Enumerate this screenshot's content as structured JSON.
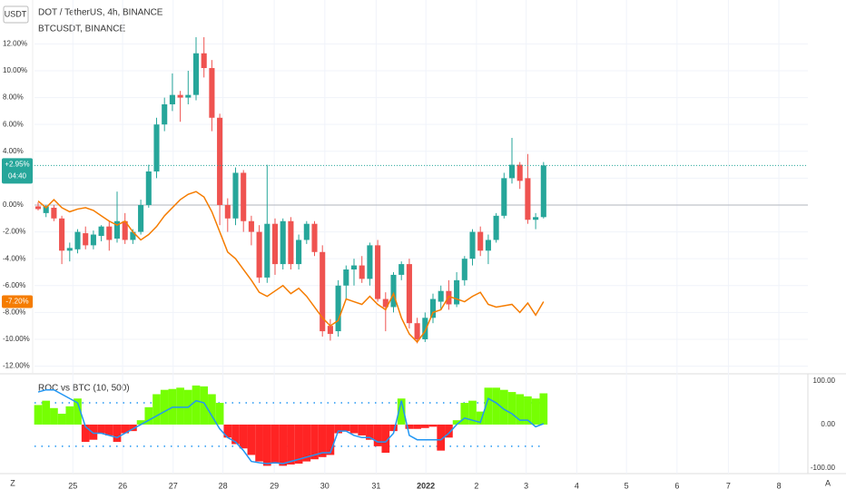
{
  "ui": {
    "currency": "USDT",
    "zoom": "Z",
    "auto": "A"
  },
  "chart_data": [
    {
      "type": "candlestick",
      "title": "DOT / TetherUS, 4h, BINANCE",
      "subtitle": "BTCUSDT, BINANCE",
      "up_color": "#26a69a",
      "down_color": "#ef5350",
      "open": [
        -0.1,
        -0.6,
        -0.2,
        -1.0,
        -3.4,
        -3.3,
        -2.1,
        -3.0,
        -2.3,
        -1.6,
        -2.5,
        -1.2,
        -2.6,
        -2.0,
        0.0,
        2.5,
        6.0,
        7.5,
        8.2,
        8.0,
        8.2,
        11.3,
        10.2,
        6.5,
        0.0,
        -1.0,
        2.4,
        -1.2,
        -2.0,
        -5.4,
        -1.4,
        -4.4,
        -1.2,
        -4.4,
        -2.6,
        -1.4,
        -3.5,
        -9.0,
        -9.4,
        -6.0,
        -4.8,
        -4.5,
        -5.5,
        -3.0,
        -7.0,
        -7.6,
        -5.2,
        -4.4,
        -8.8,
        -10.0,
        -8.4,
        -7.2,
        -6.4,
        -7.4,
        -5.6,
        -4.0,
        -2.0,
        -3.4,
        -2.6,
        -0.8,
        2.0,
        3.0,
        2.0,
        -1.1,
        -0.9
      ],
      "high": [
        0.2,
        0,
        0,
        -0.8,
        -2.8,
        -1.8,
        -1.6,
        -1.9,
        -1.5,
        -1.2,
        1.0,
        -0.6,
        -1.8,
        0.4,
        3.0,
        6.5,
        8.0,
        9.8,
        8.5,
        10.0,
        12.5,
        12.5,
        10.8,
        6.8,
        0.5,
        2.8,
        2.6,
        -0.8,
        -1.5,
        3.0,
        -1.0,
        -1.0,
        -0.9,
        -2.2,
        -1.2,
        -1.2,
        -3.0,
        -8.5,
        -5.6,
        -4.5,
        -4.0,
        -3.8,
        -2.8,
        -2.6,
        -6.5,
        -5.0,
        -4.2,
        -4.0,
        -8.4,
        -8.0,
        -6.6,
        -6.0,
        -5.6,
        -5.0,
        -3.8,
        -1.8,
        -1.6,
        -2.2,
        -0.6,
        2.4,
        5.0,
        3.2,
        3.8,
        -0.6,
        3.2
      ],
      "low": [
        -0.4,
        -0.9,
        -1.2,
        -4.4,
        -4.2,
        -3.6,
        -3.3,
        -3.3,
        -2.7,
        -3.4,
        -2.8,
        -2.9,
        -2.9,
        -2.2,
        -0.2,
        2.0,
        5.5,
        7.0,
        6.2,
        7.5,
        7.8,
        9.5,
        5.5,
        -1.5,
        -2.0,
        -1.5,
        -2.0,
        -3.0,
        -5.8,
        -5.8,
        -5.2,
        -4.8,
        -4.8,
        -4.8,
        -2.9,
        -3.8,
        -9.8,
        -10.1,
        -9.8,
        -7.0,
        -6.0,
        -5.8,
        -6.0,
        -7.2,
        -9.4,
        -8.0,
        -5.6,
        -9.2,
        -10.3,
        -10.2,
        -8.8,
        -7.8,
        -7.8,
        -7.6,
        -6.0,
        -4.5,
        -3.8,
        -4.4,
        -2.8,
        -1.0,
        1.6,
        1.2,
        -1.4,
        -1.8,
        -1.0
      ],
      "close": [
        -0.3,
        -0.1,
        -1.0,
        -3.4,
        -3.2,
        -2.0,
        -3.0,
        -2.2,
        -1.6,
        -2.6,
        -1.2,
        -2.6,
        -2.0,
        0.0,
        2.5,
        6.0,
        7.5,
        8.2,
        8.0,
        8.2,
        11.3,
        10.2,
        6.5,
        0.0,
        -1.0,
        2.4,
        -1.2,
        -2.0,
        -5.4,
        -1.4,
        -4.4,
        -1.2,
        -4.4,
        -2.6,
        -1.4,
        -3.5,
        -9.4,
        -9.6,
        -6.0,
        -4.8,
        -4.5,
        -5.5,
        -3.0,
        -7.0,
        -7.6,
        -5.2,
        -4.4,
        -8.8,
        -10.0,
        -8.4,
        -7.0,
        -6.4,
        -7.4,
        -5.6,
        -4.0,
        -2.0,
        -3.4,
        -2.6,
        -0.8,
        2.0,
        3.0,
        1.8,
        -1.1,
        -0.9,
        2.95
      ],
      "series": [
        {
          "name": "BTCUSDT, BINANCE",
          "color": "#f57c00",
          "values": [
            0.3,
            -0.2,
            0.4,
            -0.2,
            -0.5,
            -0.3,
            -0.2,
            -0.4,
            -0.8,
            -1.2,
            -1.5,
            -1.2,
            -2.0,
            -2.6,
            -2.2,
            -1.6,
            -0.8,
            -0.2,
            0.4,
            0.8,
            1.0,
            0.6,
            -0.5,
            -2.0,
            -3.5,
            -4.0,
            -4.8,
            -5.6,
            -6.5,
            -6.8,
            -6.4,
            -6.0,
            -6.6,
            -6.2,
            -6.8,
            -7.6,
            -8.4,
            -9.0,
            -8.6,
            -7.0,
            -7.2,
            -7.4,
            -6.8,
            -7.4,
            -7.8,
            -6.6,
            -8.4,
            -9.6,
            -10.2,
            -9.4,
            -8.0,
            -7.8,
            -6.8,
            -7.0,
            -7.2,
            -6.8,
            -6.5,
            -7.4,
            -7.6,
            -7.5,
            -7.4,
            -8.0,
            -7.3,
            -8.2,
            -7.2
          ]
        }
      ],
      "last_price": {
        "value": 2.95,
        "label": "+2.95%",
        "countdown": "04:40"
      },
      "btc_last": {
        "value": -7.2,
        "label": "-7.20%"
      },
      "ylim": [
        -12.57,
        15.27
      ],
      "yticks": [
        {
          "value": 12,
          "label": "12.00%"
        },
        {
          "value": 10,
          "label": "10.00%"
        },
        {
          "value": 8,
          "label": "8.00%"
        },
        {
          "value": 6,
          "label": "6.00%"
        },
        {
          "value": 4,
          "label": "4.00%"
        },
        {
          "value": 2,
          "label": "2.00%"
        },
        {
          "value": 0,
          "label": "0.00%"
        },
        {
          "value": -2,
          "label": "-2.00%"
        },
        {
          "value": -4,
          "label": "-4.00%"
        },
        {
          "value": -6,
          "label": "-6.00%"
        },
        {
          "value": -8,
          "label": "-8.00%"
        },
        {
          "value": -10,
          "label": "-10.00%"
        },
        {
          "value": -12,
          "label": "-12.00%"
        }
      ],
      "xlim": [
        -0.46,
        97.47
      ],
      "xticks": [
        {
          "value": 4.4,
          "label": "25"
        },
        {
          "value": 10.7,
          "label": "26"
        },
        {
          "value": 17.1,
          "label": "27"
        },
        {
          "value": 23.4,
          "label": "28"
        },
        {
          "value": 29.9,
          "label": "29"
        },
        {
          "value": 36.3,
          "label": "30"
        },
        {
          "value": 42.8,
          "label": "31"
        },
        {
          "value": 49.1,
          "label": "2022"
        },
        {
          "value": 55.5,
          "label": "2"
        },
        {
          "value": 61.8,
          "label": "3"
        },
        {
          "value": 68.2,
          "label": "4"
        },
        {
          "value": 74.5,
          "label": "5"
        },
        {
          "value": 80.9,
          "label": "6"
        },
        {
          "value": 87.4,
          "label": "7"
        },
        {
          "value": 93.8,
          "label": "8"
        }
      ],
      "grid": true
    },
    {
      "type": "histogram-line",
      "title": "ROC vs BTC (10, 500)",
      "pos_color": "#76ff03",
      "neg_color": "#ff2424",
      "line_color": "#2196f3",
      "values": [
        45,
        55,
        38,
        25,
        42,
        60,
        -40,
        -35,
        -20,
        -25,
        -40,
        -20,
        -15,
        10,
        40,
        70,
        80,
        82,
        85,
        80,
        90,
        88,
        70,
        50,
        -30,
        -45,
        -55,
        -70,
        -85,
        -95,
        -90,
        -95,
        -92,
        -90,
        -85,
        -80,
        -75,
        -70,
        -20,
        -15,
        -20,
        -25,
        -35,
        -50,
        -65,
        -15,
        60,
        -10,
        -10,
        -8,
        -5,
        -60,
        -30,
        10,
        50,
        55,
        30,
        85,
        85,
        80,
        75,
        70,
        65,
        60,
        72
      ],
      "line": [
        75,
        80,
        80,
        70,
        60,
        50,
        -5,
        -20,
        -20,
        -25,
        -30,
        -20,
        -10,
        0,
        10,
        20,
        30,
        40,
        40,
        40,
        55,
        50,
        20,
        -10,
        -30,
        -40,
        -60,
        -85,
        -88,
        -90,
        -88,
        -90,
        -85,
        -80,
        -75,
        -70,
        -65,
        -65,
        -15,
        -15,
        -25,
        -30,
        -30,
        -40,
        -40,
        -20,
        55,
        -25,
        -35,
        -35,
        -35,
        -35,
        -20,
        0,
        15,
        10,
        5,
        60,
        50,
        35,
        25,
        10,
        10,
        -5,
        2
      ],
      "levels": [
        50,
        -50
      ],
      "y2lim": [
        -113,
        117
      ],
      "y2ticks": [
        {
          "value": 100,
          "label": "100.00"
        },
        {
          "value": 0,
          "label": "0.00"
        },
        {
          "value": -100,
          "label": "-100.00"
        }
      ]
    }
  ]
}
